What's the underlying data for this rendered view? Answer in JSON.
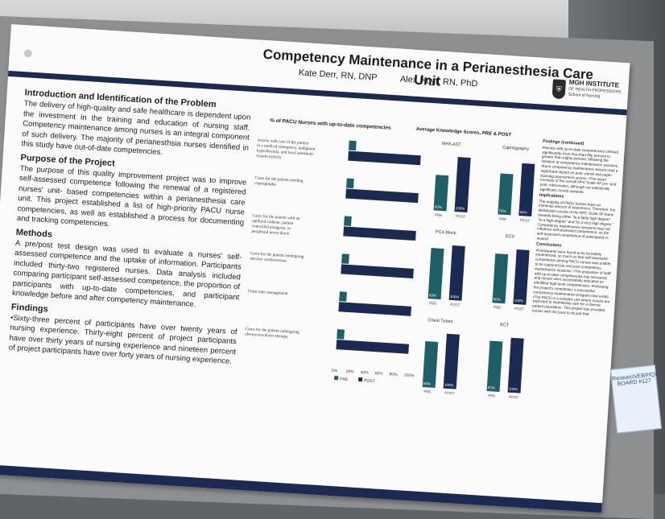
{
  "poster": {
    "title": "Competency Maintenance in a Perianesthesia Care Unit",
    "authors": [
      "Kate Derr, RN, DNP",
      "Alex Hoyt, RN, PhD"
    ],
    "logo": {
      "line1": "MGH INSTITUTE",
      "line2": "OF HEALTH PROFESSIONS",
      "line3": "School of Nursing"
    }
  },
  "left_column": {
    "sections": [
      {
        "heading": "Introduction and Identification of the Problem",
        "body": "The delivery of high-quality and safe healthcare is dependent upon the investment in the training and education of nursing staff. Competency maintenance among nurses is an integral component of such delivery. The majority of perianesthsia nurses identified in this study have out-of-date competencies."
      },
      {
        "heading": "Purpose of the Project",
        "body": "The purpose of this quality improvement project was to improve self-assessed competence following the renewal of a registered nurses' unit- based competencies within a perianesthesia care unit. This project established a list of high-priority PACU nurse competencies, as well as established a process for documenting and tracking competencies."
      },
      {
        "heading": "Methods",
        "body": "A pre/post test design was used to evaluate a nurses' self-assessed competence and the uptake of information. Participants included thirty-two registered nurses. Data analysis included comparing participant self-assessed competence, the proportion of participants with up-to-date competencies, and participant knowledge before and after competency maintenance."
      },
      {
        "heading": "Findings",
        "body": "•Sixty-three percent of participants have over twenty years of nursing experience. Thirty-eight percent of project participants have over thirty years of nursing experience and nineteen percent of project participants have over forty years of nursing experience."
      }
    ]
  },
  "chart_data": [
    {
      "type": "bar",
      "orientation": "horizontal",
      "title": "% of PACU Nurses with up-to-date competencies",
      "categories": [
        "Assists with care of the patient in a medical emergency, malignant hyperthermia, and local anesthetic system toxicity",
        "Cares for the patient needing capnography",
        "Cares for the patient with an epidural catheter, patient controlled analgesia, or peripheral nerve block",
        "Cares for the patient undergoing elective cardioversion",
        "Chest tube management",
        "Cares for the patient undergoing electroconvulsive therapy"
      ],
      "series": [
        {
          "name": "PRE",
          "values": [
            10,
            10,
            10,
            10,
            10,
            10
          ],
          "color": "#1f5f68"
        },
        {
          "name": "POST",
          "values": [
            100,
            100,
            100,
            100,
            100,
            100
          ],
          "color": "#1b2a52"
        }
      ],
      "xticks": [
        "0%",
        "20%",
        "40%",
        "60%",
        "80%",
        "100%"
      ],
      "xlim": [
        0,
        100
      ]
    },
    {
      "type": "bar",
      "title": "Average Knowledge Scores, PRE & POST",
      "panels": [
        {
          "name": "MH/LAST",
          "values": [
            65,
            100
          ],
          "labels": [
            "65%",
            "100%"
          ]
        },
        {
          "name": "Capnography",
          "values": [
            75,
            96
          ],
          "labels": [
            "75%",
            "96%"
          ]
        },
        {
          "name": "PCA Block",
          "values": [
            93,
            100
          ],
          "labels": [
            "93%",
            "100%"
          ]
        },
        {
          "name": "ECV",
          "values": [
            90,
            100
          ],
          "labels": [
            "90%",
            "100%"
          ]
        },
        {
          "name": "Chest Tubes",
          "values": [
            84,
            100
          ],
          "labels": [
            "84%",
            "100%"
          ]
        },
        {
          "name": "ECT",
          "values": [
            92,
            100
          ],
          "labels": [
            "92%",
            "100%"
          ]
        }
      ],
      "categories": [
        "PRE",
        "POST"
      ],
      "colors": [
        "#1f5f68",
        "#1b2a52"
      ],
      "ylim": [
        0,
        100
      ]
    }
  ],
  "right_column": {
    "sections": [
      {
        "heading": "Findings (continued)",
        "body": "•Nurses with up-to-date competencies climbed significantly, from less than fifty percent to greater than eighty percent, following the initiation of competency maintenance sessions. •Each competency maintenance session had a significant impact on post- pencil and paper learning assessment scores. •The mean increase of the overall NPC Scale-SF pre- and post- intervention, although not statistically significant, trends upwards."
      },
      {
        "heading": "Implications",
        "body": "The majority of PACU nurses have an immense amount of experience. Therefore, the distribution course of the NPC Scale-SF leans towards being either \"to a fairly high degree\" \"to a high degree\" and \"to a very high degree.\" Competency maintenance sessions may not influence self-assessed competence, as the self-assessed competence of participants is neutral."
      },
      {
        "heading": "Conclusions",
        "body": "•Participants were found to be incredibly experienced, so much so that self-assessed competence among PACU nurses was unable to be captured pre and post competency maintenance sessions. •The proportion of staff with up-to-date competencies has increased, and nurses were successfully educated on identified high-level competencies. •Following the project's completion, a successful competency maintenance program now exists. •The PACU is a complex unit where nurses are expected to seamlessly care for a diverse patient population. This project has provided nurses with the tools to do just that."
      }
    ]
  },
  "board_tag": {
    "text": "Research/EBP/QI BOARD #127"
  }
}
